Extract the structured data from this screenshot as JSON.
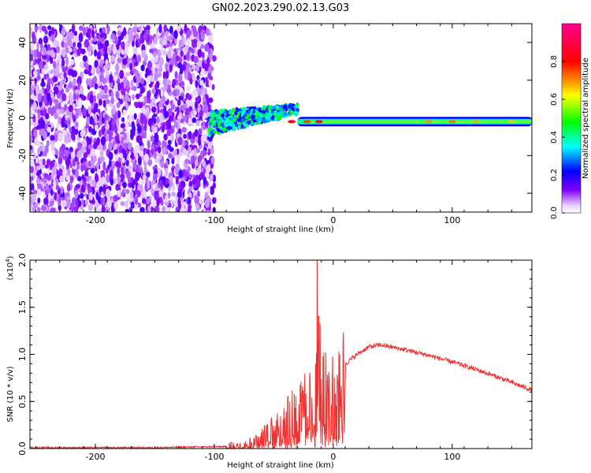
{
  "title": "GN02.2023.290.02.13.G03",
  "chart_data": [
    {
      "type": "heatmap",
      "xlabel": "Height of straight line (km)",
      "ylabel": "Frequency (Hz)",
      "xlim": [
        -255,
        167
      ],
      "ylim": [
        -50,
        50
      ],
      "xticks": [
        -200,
        -100,
        0,
        100
      ],
      "yticks": [
        -40,
        -20,
        0,
        20,
        40
      ],
      "colorbar": {
        "label": "Normalized spectral amplitude",
        "range": [
          0,
          1
        ],
        "ticks": [
          "0.0",
          "0.2",
          "0.4",
          "0.6",
          "0.8"
        ],
        "colormap": [
          "#ffffff",
          "#8000ff",
          "#0000ff",
          "#00ffff",
          "#00ff00",
          "#ffff00",
          "#ff0000",
          "#ff0090"
        ]
      },
      "regions": [
        {
          "name": "noise",
          "x": [
            -255,
            -100
          ],
          "y": [
            -50,
            48
          ],
          "amplitude": 0.1
        },
        {
          "name": "signal-onset",
          "x": [
            -105,
            -30
          ],
          "y": [
            -12,
            8
          ],
          "amplitude": 0.35
        },
        {
          "name": "signal-track",
          "x": [
            -30,
            167
          ],
          "y_center": -2,
          "amplitude": 0.55
        }
      ]
    },
    {
      "type": "line",
      "xlabel": "Height of straight line (km)",
      "ylabel": "SNR (10 * v/v)",
      "y_multiplier": "(x10",
      "y_multiplier_exp": "4",
      "y_multiplier_close": ")",
      "xlim": [
        -255,
        167
      ],
      "ylim": [
        0,
        2.0
      ],
      "xticks": [
        -200,
        -100,
        0,
        100
      ],
      "yticks": [
        "0.0",
        "0.5",
        "1.0",
        "1.5",
        "2.0"
      ],
      "line_color": "#ee3333",
      "series": [
        {
          "x": [
            -255,
            -200,
            -150,
            -100,
            -90,
            -80,
            -70,
            -60,
            -50,
            -40,
            -30,
            -20,
            -14,
            -13,
            -10,
            0,
            10,
            20,
            30,
            40,
            60,
            80,
            100,
            120,
            140,
            167
          ],
          "y": [
            0.01,
            0.01,
            0.01,
            0.02,
            0.02,
            0.04,
            0.08,
            0.15,
            0.25,
            0.42,
            0.5,
            0.6,
            0.75,
            2.0,
            0.7,
            0.75,
            0.9,
            1.0,
            1.08,
            1.1,
            1.05,
            0.99,
            0.92,
            0.84,
            0.75,
            0.62
          ]
        }
      ]
    }
  ]
}
